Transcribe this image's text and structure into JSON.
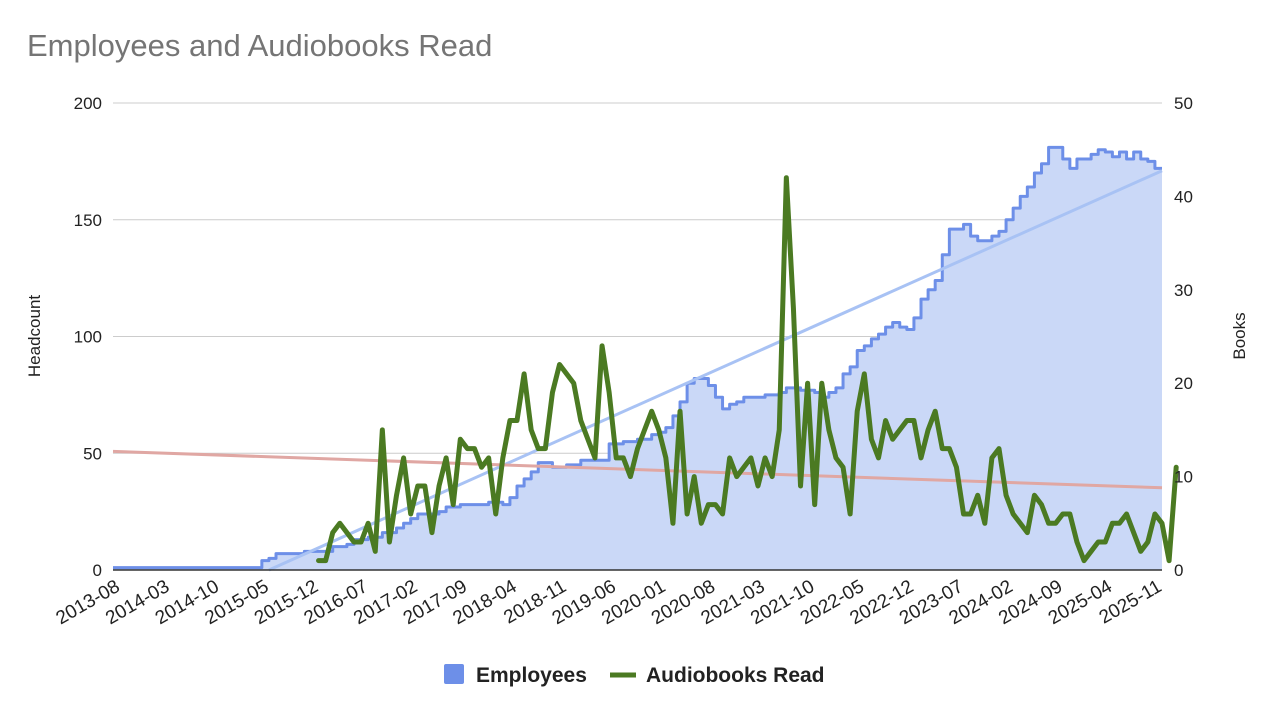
{
  "chart_data": {
    "type": "area",
    "title": "Employees and Audiobooks Read",
    "y_left_label": "Headcount",
    "y_right_label": "Books",
    "y_left_ticks": [
      "0",
      "50",
      "100",
      "150",
      "200"
    ],
    "y_right_ticks": [
      "0",
      "10",
      "20",
      "30",
      "40",
      "50"
    ],
    "y_left_range": [
      0,
      200
    ],
    "y_right_range": [
      0,
      50
    ],
    "x_start": "2013-08",
    "x_end": "2025-12",
    "x_tick_labels": [
      "2013-08",
      "2014-03",
      "2014-10",
      "2015-05",
      "2015-12",
      "2016-07",
      "2017-02",
      "2017-09",
      "2018-04",
      "2018-11",
      "2019-06",
      "2020-01",
      "2020-08",
      "2021-03",
      "2021-10",
      "2022-05",
      "2022-12",
      "2023-07",
      "2024-02",
      "2024-09",
      "2025-04",
      "2025-11"
    ],
    "grid": true,
    "legend_position": "bottom",
    "colors": {
      "employees_fill": "#cad8f7",
      "employees_line": "#6d8fe8",
      "employees_trend": "#a8c2f4",
      "books_line": "#4b7a22",
      "books_trend": "#e0a7a3",
      "legend_employees": "#6d8fe8",
      "legend_books": "#4b7a22",
      "grid": "#cccccc",
      "baseline": "#333333"
    },
    "series": [
      {
        "name": "Employees",
        "axis": "left",
        "style": "stepped-area",
        "points": [
          [
            "2013-08",
            1
          ],
          [
            "2014-10",
            1
          ],
          [
            "2015-04",
            1
          ],
          [
            "2015-05",
            4
          ],
          [
            "2015-06",
            5
          ],
          [
            "2015-07",
            7
          ],
          [
            "2015-10",
            7
          ],
          [
            "2015-11",
            8
          ],
          [
            "2016-02",
            8
          ],
          [
            "2016-03",
            10
          ],
          [
            "2016-05",
            11
          ],
          [
            "2016-06",
            13
          ],
          [
            "2016-08",
            14
          ],
          [
            "2016-10",
            16
          ],
          [
            "2016-12",
            18
          ],
          [
            "2017-01",
            20
          ],
          [
            "2017-02",
            22
          ],
          [
            "2017-03",
            24
          ],
          [
            "2017-06",
            25
          ],
          [
            "2017-07",
            27
          ],
          [
            "2017-09",
            28
          ],
          [
            "2018-01",
            29
          ],
          [
            "2018-03",
            28
          ],
          [
            "2018-04",
            31
          ],
          [
            "2018-05",
            36
          ],
          [
            "2018-06",
            39
          ],
          [
            "2018-07",
            42
          ],
          [
            "2018-08",
            46
          ],
          [
            "2018-10",
            44
          ],
          [
            "2018-12",
            45
          ],
          [
            "2019-02",
            47
          ],
          [
            "2019-05",
            47
          ],
          [
            "2019-06",
            54
          ],
          [
            "2019-08",
            55
          ],
          [
            "2019-10",
            56
          ],
          [
            "2019-12",
            58
          ],
          [
            "2020-01",
            59
          ],
          [
            "2020-02",
            61
          ],
          [
            "2020-03",
            66
          ],
          [
            "2020-04",
            72
          ],
          [
            "2020-05",
            80
          ],
          [
            "2020-06",
            82
          ],
          [
            "2020-08",
            79
          ],
          [
            "2020-09",
            74
          ],
          [
            "2020-10",
            69
          ],
          [
            "2020-11",
            71
          ],
          [
            "2020-12",
            72
          ],
          [
            "2021-01",
            74
          ],
          [
            "2021-03",
            74
          ],
          [
            "2021-04",
            75
          ],
          [
            "2021-06",
            76
          ],
          [
            "2021-07",
            78
          ],
          [
            "2021-09",
            77
          ],
          [
            "2021-11",
            76
          ],
          [
            "2021-12",
            74
          ],
          [
            "2022-01",
            76
          ],
          [
            "2022-02",
            78
          ],
          [
            "2022-03",
            84
          ],
          [
            "2022-04",
            87
          ],
          [
            "2022-05",
            94
          ],
          [
            "2022-06",
            96
          ],
          [
            "2022-07",
            99
          ],
          [
            "2022-08",
            101
          ],
          [
            "2022-09",
            104
          ],
          [
            "2022-10",
            106
          ],
          [
            "2022-11",
            104
          ],
          [
            "2022-12",
            103
          ],
          [
            "2023-01",
            108
          ],
          [
            "2023-02",
            116
          ],
          [
            "2023-03",
            120
          ],
          [
            "2023-04",
            124
          ],
          [
            "2023-05",
            135
          ],
          [
            "2023-06",
            146
          ],
          [
            "2023-08",
            148
          ],
          [
            "2023-09",
            143
          ],
          [
            "2023-10",
            141
          ],
          [
            "2023-12",
            143
          ],
          [
            "2024-01",
            145
          ],
          [
            "2024-02",
            150
          ],
          [
            "2024-03",
            155
          ],
          [
            "2024-04",
            160
          ],
          [
            "2024-05",
            164
          ],
          [
            "2024-06",
            170
          ],
          [
            "2024-07",
            174
          ],
          [
            "2024-08",
            181
          ],
          [
            "2024-10",
            176
          ],
          [
            "2024-11",
            172
          ],
          [
            "2024-12",
            176
          ],
          [
            "2025-02",
            178
          ],
          [
            "2025-03",
            180
          ],
          [
            "2025-04",
            179
          ],
          [
            "2025-05",
            177
          ],
          [
            "2025-06",
            179
          ],
          [
            "2025-07",
            176
          ],
          [
            "2025-08",
            179
          ],
          [
            "2025-09",
            176
          ],
          [
            "2025-10",
            175
          ],
          [
            "2025-11",
            172
          ],
          [
            "2025-12",
            172
          ]
        ]
      },
      {
        "name": "Audiobooks Read",
        "axis": "right",
        "style": "line",
        "points": [
          [
            "2016-01",
            1
          ],
          [
            "2016-02",
            1
          ],
          [
            "2016-03",
            4
          ],
          [
            "2016-04",
            5
          ],
          [
            "2016-05",
            4
          ],
          [
            "2016-06",
            3
          ],
          [
            "2016-07",
            3
          ],
          [
            "2016-08",
            5
          ],
          [
            "2016-09",
            2
          ],
          [
            "2016-10",
            15
          ],
          [
            "2016-11",
            3
          ],
          [
            "2016-12",
            8
          ],
          [
            "2017-01",
            12
          ],
          [
            "2017-02",
            6
          ],
          [
            "2017-03",
            9
          ],
          [
            "2017-04",
            9
          ],
          [
            "2017-05",
            4
          ],
          [
            "2017-06",
            9
          ],
          [
            "2017-07",
            12
          ],
          [
            "2017-08",
            7
          ],
          [
            "2017-09",
            14
          ],
          [
            "2017-10",
            13
          ],
          [
            "2017-11",
            13
          ],
          [
            "2017-12",
            11
          ],
          [
            "2018-01",
            12
          ],
          [
            "2018-02",
            6
          ],
          [
            "2018-03",
            12
          ],
          [
            "2018-04",
            16
          ],
          [
            "2018-05",
            16
          ],
          [
            "2018-06",
            21
          ],
          [
            "2018-07",
            15
          ],
          [
            "2018-08",
            13
          ],
          [
            "2018-09",
            13
          ],
          [
            "2018-10",
            19
          ],
          [
            "2018-11",
            22
          ],
          [
            "2018-12",
            21
          ],
          [
            "2019-01",
            20
          ],
          [
            "2019-02",
            16
          ],
          [
            "2019-03",
            14
          ],
          [
            "2019-04",
            12
          ],
          [
            "2019-05",
            24
          ],
          [
            "2019-06",
            19
          ],
          [
            "2019-07",
            12
          ],
          [
            "2019-08",
            12
          ],
          [
            "2019-09",
            10
          ],
          [
            "2019-10",
            13
          ],
          [
            "2019-11",
            15
          ],
          [
            "2019-12",
            17
          ],
          [
            "2020-01",
            15
          ],
          [
            "2020-02",
            12
          ],
          [
            "2020-03",
            5
          ],
          [
            "2020-04",
            17
          ],
          [
            "2020-05",
            6
          ],
          [
            "2020-06",
            10
          ],
          [
            "2020-07",
            5
          ],
          [
            "2020-08",
            7
          ],
          [
            "2020-09",
            7
          ],
          [
            "2020-10",
            6
          ],
          [
            "2020-11",
            12
          ],
          [
            "2020-12",
            10
          ],
          [
            "2021-01",
            11
          ],
          [
            "2021-02",
            12
          ],
          [
            "2021-03",
            9
          ],
          [
            "2021-04",
            12
          ],
          [
            "2021-05",
            10
          ],
          [
            "2021-06",
            15
          ],
          [
            "2021-07",
            42
          ],
          [
            "2021-08",
            28
          ],
          [
            "2021-09",
            9
          ],
          [
            "2021-10",
            20
          ],
          [
            "2021-11",
            7
          ],
          [
            "2021-12",
            20
          ],
          [
            "2022-01",
            15
          ],
          [
            "2022-02",
            12
          ],
          [
            "2022-03",
            11
          ],
          [
            "2022-04",
            6
          ],
          [
            "2022-05",
            17
          ],
          [
            "2022-06",
            21
          ],
          [
            "2022-07",
            14
          ],
          [
            "2022-08",
            12
          ],
          [
            "2022-09",
            16
          ],
          [
            "2022-10",
            14
          ],
          [
            "2022-11",
            15
          ],
          [
            "2022-12",
            16
          ],
          [
            "2023-01",
            16
          ],
          [
            "2023-02",
            12
          ],
          [
            "2023-03",
            15
          ],
          [
            "2023-04",
            17
          ],
          [
            "2023-05",
            13
          ],
          [
            "2023-06",
            13
          ],
          [
            "2023-07",
            11
          ],
          [
            "2023-08",
            6
          ],
          [
            "2023-09",
            6
          ],
          [
            "2023-10",
            8
          ],
          [
            "2023-11",
            5
          ],
          [
            "2023-12",
            12
          ],
          [
            "2024-01",
            13
          ],
          [
            "2024-02",
            8
          ],
          [
            "2024-03",
            6
          ],
          [
            "2024-04",
            5
          ],
          [
            "2024-05",
            4
          ],
          [
            "2024-06",
            8
          ],
          [
            "2024-07",
            7
          ],
          [
            "2024-08",
            5
          ],
          [
            "2024-09",
            5
          ],
          [
            "2024-10",
            6
          ],
          [
            "2024-11",
            6
          ],
          [
            "2024-12",
            3
          ],
          [
            "2025-01",
            1
          ],
          [
            "2025-02",
            2
          ],
          [
            "2025-03",
            3
          ],
          [
            "2025-04",
            3
          ],
          [
            "2025-05",
            5
          ],
          [
            "2025-06",
            5
          ],
          [
            "2025-07",
            6
          ],
          [
            "2025-08",
            4
          ],
          [
            "2025-09",
            2
          ],
          [
            "2025-10",
            3
          ],
          [
            "2025-11",
            6
          ],
          [
            "2025-12",
            5
          ],
          [
            "2026-01",
            1
          ],
          [
            "2026-02",
            11
          ]
        ]
      }
    ],
    "trendlines": [
      {
        "series": "Employees",
        "axis": "left",
        "points": [
          [
            "2015-06",
            0
          ],
          [
            "2025-12",
            171
          ]
        ]
      },
      {
        "series": "Audiobooks Read",
        "axis": "right",
        "points": [
          [
            "2013-08",
            12.7
          ],
          [
            "2025-12",
            8.8
          ]
        ]
      }
    ]
  }
}
